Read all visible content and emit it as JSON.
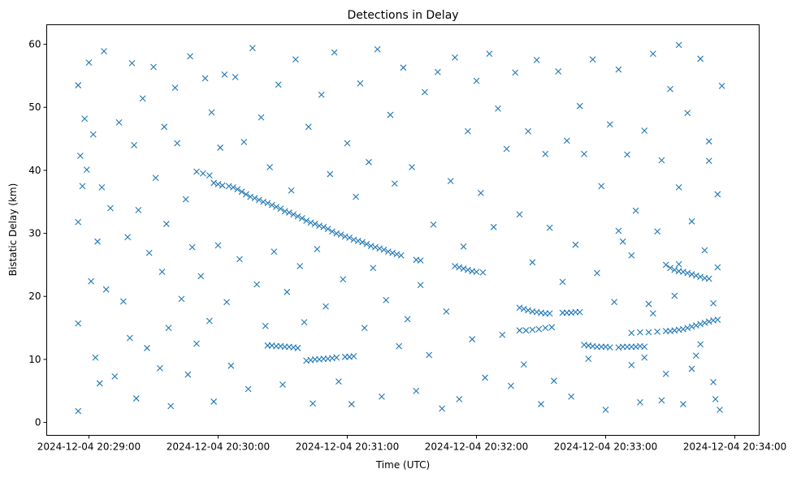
{
  "chart_data": {
    "type": "scatter",
    "title": "Detections in Delay",
    "xlabel": "Time (UTC)",
    "ylabel": "Bistatic Delay (km)",
    "x_unit": "seconds after 2024-12-04 20:29:00",
    "xlim": [
      -19.6,
      311.3
    ],
    "ylim": [
      -2.05,
      63.1
    ],
    "x_ticks": [
      {
        "value": 0,
        "label": "2024-12-04 20:29:00"
      },
      {
        "value": 60,
        "label": "2024-12-04 20:30:00"
      },
      {
        "value": 120,
        "label": "2024-12-04 20:31:00"
      },
      {
        "value": 180,
        "label": "2024-12-04 20:32:00"
      },
      {
        "value": 240,
        "label": "2024-12-04 20:33:00"
      },
      {
        "value": 300,
        "label": "2024-12-04 20:34:00"
      }
    ],
    "y_ticks": [
      {
        "value": 0,
        "label": "0"
      },
      {
        "value": 10,
        "label": "10"
      },
      {
        "value": 20,
        "label": "20"
      },
      {
        "value": 30,
        "label": "30"
      },
      {
        "value": 40,
        "label": "40"
      },
      {
        "value": 50,
        "label": "50"
      },
      {
        "value": 60,
        "label": "60"
      }
    ],
    "grid": false,
    "marker": "x",
    "color": "#1f77b4",
    "points": [
      [
        50,
        39.8
      ],
      [
        53,
        39.5
      ],
      [
        56,
        39.2
      ],
      [
        58,
        38.0
      ],
      [
        60,
        37.8
      ],
      [
        62,
        37.6
      ],
      [
        65,
        37.5
      ],
      [
        67,
        37.3
      ],
      [
        69,
        37.0
      ],
      [
        71,
        36.6
      ],
      [
        73,
        36.2
      ],
      [
        75,
        35.8
      ],
      [
        77,
        35.6
      ],
      [
        79,
        35.3
      ],
      [
        81,
        35.0
      ],
      [
        83,
        34.8
      ],
      [
        85,
        34.5
      ],
      [
        87,
        34.2
      ],
      [
        89,
        33.9
      ],
      [
        91,
        33.5
      ],
      [
        93,
        33.3
      ],
      [
        95,
        33.0
      ],
      [
        97,
        32.7
      ],
      [
        99,
        32.4
      ],
      [
        101,
        32.0
      ],
      [
        103,
        31.7
      ],
      [
        105,
        31.5
      ],
      [
        107,
        31.2
      ],
      [
        109,
        31.0
      ],
      [
        111,
        30.7
      ],
      [
        113,
        30.3
      ],
      [
        115,
        30.0
      ],
      [
        117,
        29.8
      ],
      [
        119,
        29.5
      ],
      [
        121,
        29.3
      ],
      [
        123,
        29.0
      ],
      [
        125,
        28.8
      ],
      [
        127,
        28.6
      ],
      [
        129,
        28.3
      ],
      [
        131,
        28.0
      ],
      [
        133,
        27.8
      ],
      [
        135,
        27.6
      ],
      [
        137,
        27.4
      ],
      [
        139,
        27.1
      ],
      [
        141,
        26.9
      ],
      [
        143,
        26.7
      ],
      [
        145,
        26.5
      ],
      [
        152,
        25.8
      ],
      [
        154,
        25.7
      ],
      [
        170,
        24.8
      ],
      [
        172,
        24.6
      ],
      [
        174,
        24.4
      ],
      [
        176,
        24.2
      ],
      [
        178,
        24.0
      ],
      [
        180,
        23.9
      ],
      [
        183,
        23.8
      ],
      [
        83,
        12.2
      ],
      [
        85,
        12.2
      ],
      [
        87,
        12.1
      ],
      [
        89,
        12.1
      ],
      [
        91,
        12.0
      ],
      [
        93,
        12.0
      ],
      [
        95,
        11.9
      ],
      [
        97,
        11.8
      ],
      [
        101,
        9.8
      ],
      [
        103,
        9.9
      ],
      [
        105,
        10.0
      ],
      [
        107,
        10.0
      ],
      [
        109,
        10.1
      ],
      [
        111,
        10.1
      ],
      [
        113,
        10.2
      ],
      [
        115,
        10.3
      ],
      [
        119,
        10.4
      ],
      [
        121,
        10.4
      ],
      [
        123,
        10.5
      ],
      [
        200,
        18.2
      ],
      [
        202,
        18.0
      ],
      [
        204,
        17.8
      ],
      [
        206,
        17.6
      ],
      [
        208,
        17.5
      ],
      [
        210,
        17.4
      ],
      [
        212,
        17.3
      ],
      [
        214,
        17.3
      ],
      [
        220,
        17.4
      ],
      [
        222,
        17.4
      ],
      [
        224,
        17.4
      ],
      [
        226,
        17.5
      ],
      [
        228,
        17.5
      ],
      [
        230,
        12.3
      ],
      [
        232,
        12.2
      ],
      [
        234,
        12.1
      ],
      [
        236,
        12.0
      ],
      [
        238,
        12.0
      ],
      [
        240,
        12.0
      ],
      [
        242,
        11.9
      ],
      [
        246,
        11.9
      ],
      [
        248,
        12.0
      ],
      [
        250,
        12.0
      ],
      [
        252,
        12.0
      ],
      [
        254,
        12.0
      ],
      [
        256,
        12.1
      ],
      [
        258,
        12.0
      ],
      [
        200,
        14.6
      ],
      [
        203,
        14.6
      ],
      [
        206,
        14.7
      ],
      [
        209,
        14.8
      ],
      [
        212,
        15.0
      ],
      [
        215,
        15.1
      ],
      [
        252,
        14.2
      ],
      [
        256,
        14.3
      ],
      [
        260,
        14.3
      ],
      [
        264,
        14.4
      ],
      [
        268,
        14.5
      ],
      [
        270,
        14.5
      ],
      [
        272,
        14.6
      ],
      [
        274,
        14.7
      ],
      [
        276,
        14.8
      ],
      [
        278,
        15.0
      ],
      [
        280,
        15.2
      ],
      [
        282,
        15.4
      ],
      [
        284,
        15.6
      ],
      [
        286,
        15.8
      ],
      [
        288,
        16.0
      ],
      [
        290,
        16.2
      ],
      [
        292,
        16.3
      ],
      [
        268,
        25.0
      ],
      [
        270,
        24.5
      ],
      [
        272,
        24.2
      ],
      [
        274,
        24.0
      ],
      [
        276,
        23.9
      ],
      [
        278,
        23.7
      ],
      [
        280,
        23.5
      ],
      [
        282,
        23.3
      ],
      [
        284,
        23.1
      ],
      [
        286,
        22.9
      ],
      [
        288,
        22.8
      ],
      [
        292,
        24.6
      ],
      [
        -5,
        53.5
      ],
      [
        -5,
        31.8
      ],
      [
        -5,
        1.8
      ],
      [
        -5,
        15.7
      ],
      [
        -4,
        42.3
      ],
      [
        -3,
        37.5
      ],
      [
        -2,
        48.2
      ],
      [
        -1,
        40.1
      ],
      [
        0,
        57.1
      ],
      [
        1,
        22.4
      ],
      [
        2,
        45.7
      ],
      [
        3,
        10.3
      ],
      [
        4,
        28.7
      ],
      [
        5,
        6.2
      ],
      [
        6,
        37.3
      ],
      [
        7,
        58.9
      ],
      [
        8,
        21.1
      ],
      [
        10,
        34.0
      ],
      [
        12,
        7.3
      ],
      [
        14,
        47.6
      ],
      [
        16,
        19.2
      ],
      [
        18,
        29.4
      ],
      [
        19,
        13.4
      ],
      [
        20,
        57.0
      ],
      [
        21,
        44.0
      ],
      [
        22,
        3.8
      ],
      [
        23,
        33.7
      ],
      [
        25,
        51.4
      ],
      [
        27,
        11.8
      ],
      [
        28,
        26.9
      ],
      [
        30,
        56.4
      ],
      [
        31,
        38.8
      ],
      [
        33,
        8.6
      ],
      [
        34,
        23.9
      ],
      [
        35,
        46.9
      ],
      [
        36,
        31.5
      ],
      [
        37,
        15.0
      ],
      [
        38,
        2.6
      ],
      [
        40,
        53.1
      ],
      [
        41,
        44.3
      ],
      [
        43,
        19.6
      ],
      [
        45,
        35.4
      ],
      [
        46,
        7.6
      ],
      [
        47,
        58.1
      ],
      [
        48,
        27.8
      ],
      [
        50,
        12.5
      ],
      [
        52,
        23.2
      ],
      [
        54,
        54.6
      ],
      [
        56,
        16.1
      ],
      [
        57,
        49.2
      ],
      [
        58,
        3.3
      ],
      [
        60,
        28.1
      ],
      [
        61,
        43.6
      ],
      [
        63,
        55.2
      ],
      [
        64,
        19.1
      ],
      [
        66,
        9.0
      ],
      [
        68,
        54.8
      ],
      [
        70,
        25.9
      ],
      [
        72,
        44.5
      ],
      [
        74,
        5.3
      ],
      [
        76,
        59.4
      ],
      [
        78,
        21.9
      ],
      [
        80,
        48.4
      ],
      [
        82,
        15.3
      ],
      [
        84,
        40.5
      ],
      [
        86,
        27.1
      ],
      [
        88,
        53.6
      ],
      [
        90,
        6.0
      ],
      [
        92,
        20.7
      ],
      [
        94,
        36.8
      ],
      [
        96,
        57.6
      ],
      [
        98,
        24.8
      ],
      [
        100,
        15.9
      ],
      [
        102,
        46.9
      ],
      [
        104,
        3.0
      ],
      [
        106,
        27.5
      ],
      [
        108,
        52.0
      ],
      [
        110,
        18.4
      ],
      [
        112,
        39.4
      ],
      [
        114,
        58.7
      ],
      [
        116,
        6.5
      ],
      [
        118,
        22.7
      ],
      [
        120,
        44.3
      ],
      [
        122,
        2.9
      ],
      [
        124,
        35.8
      ],
      [
        126,
        53.8
      ],
      [
        128,
        15.0
      ],
      [
        130,
        41.3
      ],
      [
        132,
        24.5
      ],
      [
        134,
        59.2
      ],
      [
        136,
        4.1
      ],
      [
        138,
        19.4
      ],
      [
        140,
        48.8
      ],
      [
        142,
        37.9
      ],
      [
        144,
        12.1
      ],
      [
        146,
        56.3
      ],
      [
        148,
        16.4
      ],
      [
        150,
        40.5
      ],
      [
        152,
        5.0
      ],
      [
        154,
        21.8
      ],
      [
        156,
        52.4
      ],
      [
        158,
        10.7
      ],
      [
        160,
        31.4
      ],
      [
        162,
        55.6
      ],
      [
        164,
        2.2
      ],
      [
        166,
        17.6
      ],
      [
        168,
        38.3
      ],
      [
        170,
        57.9
      ],
      [
        172,
        3.7
      ],
      [
        174,
        27.9
      ],
      [
        176,
        46.2
      ],
      [
        178,
        13.2
      ],
      [
        180,
        54.2
      ],
      [
        182,
        36.4
      ],
      [
        184,
        7.1
      ],
      [
        186,
        58.5
      ],
      [
        188,
        31.0
      ],
      [
        190,
        49.8
      ],
      [
        192,
        13.9
      ],
      [
        194,
        43.4
      ],
      [
        196,
        5.8
      ],
      [
        198,
        55.5
      ],
      [
        200,
        33.0
      ],
      [
        202,
        9.2
      ],
      [
        204,
        46.2
      ],
      [
        206,
        25.4
      ],
      [
        208,
        57.5
      ],
      [
        210,
        2.9
      ],
      [
        212,
        42.6
      ],
      [
        214,
        30.9
      ],
      [
        216,
        6.6
      ],
      [
        218,
        55.7
      ],
      [
        220,
        22.3
      ],
      [
        222,
        44.7
      ],
      [
        224,
        4.1
      ],
      [
        226,
        28.2
      ],
      [
        228,
        50.2
      ],
      [
        230,
        42.6
      ],
      [
        232,
        10.1
      ],
      [
        234,
        57.6
      ],
      [
        236,
        23.7
      ],
      [
        238,
        37.5
      ],
      [
        240,
        2.0
      ],
      [
        242,
        47.3
      ],
      [
        244,
        19.1
      ],
      [
        246,
        56.0
      ],
      [
        248,
        28.7
      ],
      [
        250,
        42.5
      ],
      [
        252,
        9.1
      ],
      [
        254,
        33.6
      ],
      [
        256,
        3.2
      ],
      [
        258,
        46.3
      ],
      [
        260,
        18.8
      ],
      [
        262,
        58.5
      ],
      [
        264,
        30.3
      ],
      [
        266,
        41.6
      ],
      [
        268,
        7.7
      ],
      [
        270,
        52.9
      ],
      [
        272,
        20.1
      ],
      [
        274,
        37.3
      ],
      [
        276,
        2.9
      ],
      [
        278,
        49.1
      ],
      [
        280,
        31.9
      ],
      [
        282,
        10.6
      ],
      [
        284,
        57.7
      ],
      [
        286,
        27.3
      ],
      [
        288,
        44.6
      ],
      [
        290,
        6.4
      ],
      [
        292,
        36.2
      ],
      [
        294,
        53.4
      ],
      [
        274,
        59.9
      ],
      [
        288,
        41.5
      ],
      [
        291,
        3.7
      ],
      [
        293,
        2.0
      ],
      [
        280,
        8.5
      ],
      [
        266,
        3.5
      ],
      [
        284,
        12.4
      ],
      [
        290,
        18.9
      ],
      [
        262,
        17.3
      ],
      [
        246,
        30.4
      ],
      [
        252,
        26.5
      ],
      [
        258,
        10.3
      ],
      [
        274,
        25.1
      ]
    ]
  }
}
